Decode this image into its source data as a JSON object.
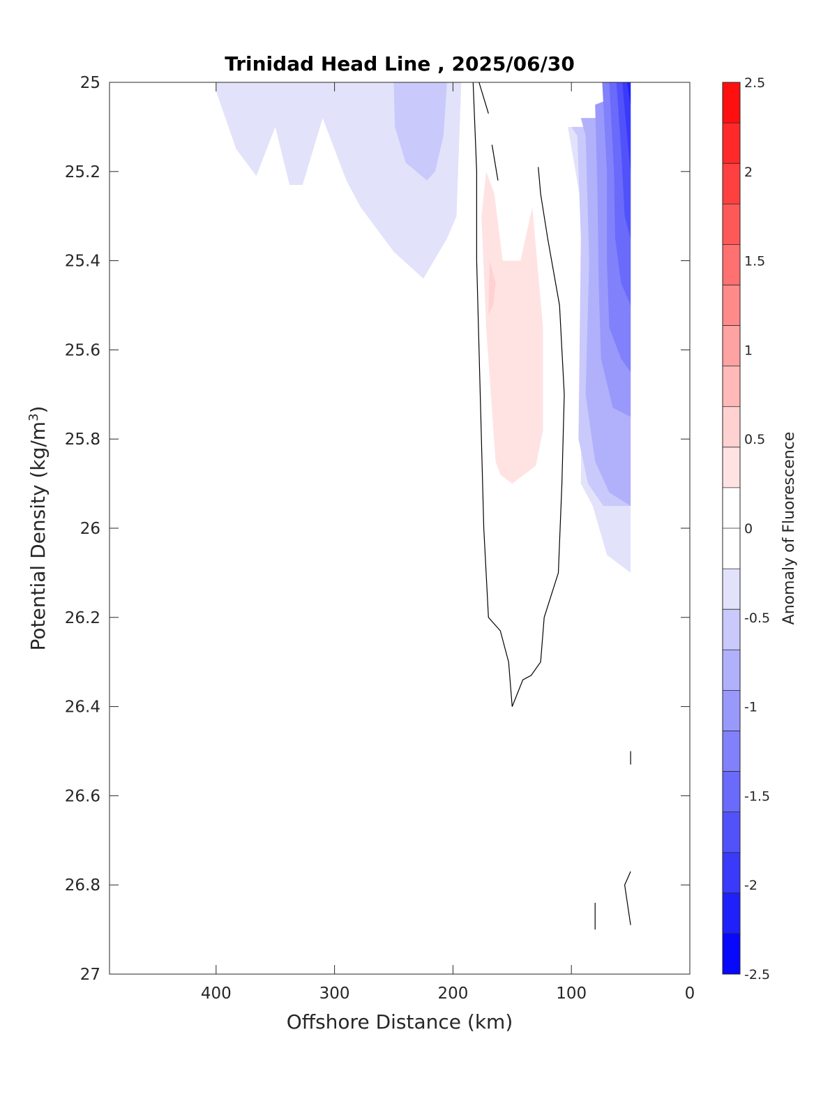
{
  "chart_data": {
    "type": "contourf",
    "title": "Trinidad Head Line , 2025/06/30",
    "xlabel": "Offshore Distance (km)",
    "ylabel_main": "Potential Density (kg/m",
    "ylabel_sup": "3",
    "ylabel_close": ")",
    "xlim": [
      490,
      0
    ],
    "ylim": [
      27,
      25
    ],
    "x_reversed": true,
    "y_reversed": true,
    "x_ticks": [
      400,
      300,
      200,
      100,
      0
    ],
    "x_tick_labels": [
      "400",
      "300",
      "200",
      "100",
      "0"
    ],
    "y_ticks": [
      25,
      25.2,
      25.4,
      25.6,
      25.8,
      26,
      26.2,
      26.4,
      26.6,
      26.8,
      27
    ],
    "y_tick_labels": [
      "25",
      "25.2",
      "25.4",
      "25.6",
      "25.8",
      "26",
      "26.2",
      "26.4",
      "26.6",
      "26.8",
      "27"
    ],
    "grid": false,
    "colorbar": {
      "label": "Anomaly of Fluorescence",
      "limits": [
        -2.5,
        2.5
      ],
      "levels": [
        -2.5,
        -2.25,
        -2,
        -1.75,
        -1.5,
        -1.25,
        -1,
        -0.75,
        -0.5,
        -0.25,
        0.25,
        0.5,
        0.75,
        1,
        1.25,
        1.5,
        1.75,
        2,
        2.25,
        2.5
      ],
      "ticks": [
        2.5,
        2,
        1.5,
        1,
        0.5,
        0,
        -0.5,
        -1,
        -1.5,
        -2,
        -2.5
      ],
      "tick_labels": [
        "2.5",
        "2",
        "1.5",
        "1",
        "0.5",
        "0",
        "-0.5",
        "-1",
        "-1.5",
        "-2",
        "-2.5"
      ],
      "colors_top_to_bottom": [
        "#ff1010",
        "#ff2929",
        "#ff4040",
        "#ff5858",
        "#ff7070",
        "#ff8a8a",
        "#ffa2a2",
        "#ffb9b9",
        "#ffd1d1",
        "#ffe3e3",
        "#ffffff",
        "#ffffff",
        "#e2e2fb",
        "#c9c9fb",
        "#b1b1fb",
        "#9999fb",
        "#8181fb",
        "#6a6afb",
        "#5252fb",
        "#3a3afb",
        "#2020fb",
        "#0808fb"
      ]
    },
    "filled_regions": [
      {
        "level": -0.25,
        "color": "#e2e2fb",
        "points": [
          [
            400,
            25
          ],
          [
            193,
            25
          ],
          [
            197,
            25.3
          ],
          [
            205,
            25.35
          ],
          [
            225,
            25.44
          ],
          [
            250,
            25.38
          ],
          [
            278,
            25.28
          ],
          [
            290,
            25.22
          ],
          [
            310,
            25.08
          ],
          [
            327,
            25.23
          ],
          [
            338,
            25.23
          ],
          [
            350,
            25.1
          ],
          [
            366,
            25.21
          ],
          [
            383,
            25.15
          ],
          [
            400,
            25.02
          ]
        ]
      },
      {
        "level": -0.25,
        "color": "#e2e2fb",
        "points": [
          [
            103,
            25.1
          ],
          [
            90,
            25.3
          ],
          [
            92,
            25.9
          ],
          [
            82,
            25.95
          ],
          [
            70,
            26.06
          ],
          [
            50,
            26.1
          ],
          [
            50,
            25.1
          ]
        ]
      },
      {
        "level": -0.5,
        "color": "#c9c9fb",
        "points": [
          [
            250,
            25
          ],
          [
            205,
            25
          ],
          [
            208,
            25.12
          ],
          [
            215,
            25.2
          ],
          [
            222,
            25.22
          ],
          [
            240,
            25.18
          ],
          [
            249,
            25.1
          ]
        ]
      },
      {
        "level": -0.5,
        "color": "#c9c9fb",
        "points": [
          [
            95,
            25.12
          ],
          [
            92,
            25.35
          ],
          [
            94,
            25.8
          ],
          [
            86,
            25.9
          ],
          [
            73,
            25.95
          ],
          [
            50,
            25.95
          ],
          [
            50,
            25.1
          ],
          [
            100,
            25.1
          ]
        ]
      },
      {
        "level": -0.75,
        "color": "#b1b1fb",
        "points": [
          [
            88,
            25.12
          ],
          [
            85,
            25.4
          ],
          [
            88,
            25.7
          ],
          [
            80,
            25.85
          ],
          [
            68,
            25.92
          ],
          [
            50,
            25.95
          ],
          [
            50,
            25.08
          ],
          [
            92,
            25.08
          ]
        ]
      },
      {
        "level": -1.0,
        "color": "#9999fb",
        "points": [
          [
            80,
            25.05
          ],
          [
            78,
            25.25
          ],
          [
            77,
            25.45
          ],
          [
            75,
            25.62
          ],
          [
            65,
            25.73
          ],
          [
            50,
            25.75
          ],
          [
            50,
            25.02
          ]
        ]
      },
      {
        "level": -1.25,
        "color": "#8181fb",
        "points": [
          [
            74,
            25
          ],
          [
            70,
            25.2
          ],
          [
            70,
            25.4
          ],
          [
            68,
            25.55
          ],
          [
            58,
            25.62
          ],
          [
            50,
            25.65
          ],
          [
            50,
            25
          ]
        ]
      },
      {
        "level": -1.5,
        "color": "#6a6afb",
        "points": [
          [
            68,
            25
          ],
          [
            64,
            25.2
          ],
          [
            63,
            25.35
          ],
          [
            58,
            25.45
          ],
          [
            50,
            25.5
          ],
          [
            50,
            25
          ]
        ]
      },
      {
        "level": -1.75,
        "color": "#5252fb",
        "points": [
          [
            62,
            25
          ],
          [
            58,
            25.15
          ],
          [
            55,
            25.3
          ],
          [
            50,
            25.35
          ],
          [
            50,
            25
          ]
        ]
      },
      {
        "level": -2.0,
        "color": "#3a3afb",
        "points": [
          [
            57,
            25
          ],
          [
            53,
            25.12
          ],
          [
            50,
            25.2
          ],
          [
            50,
            25
          ]
        ]
      },
      {
        "level": -2.25,
        "color": "#2020fb",
        "points": [
          [
            53,
            25
          ],
          [
            50,
            25.05
          ],
          [
            50,
            25
          ]
        ]
      },
      {
        "level": 0.25,
        "color": "#ffe3e3",
        "points": [
          [
            172,
            25.2
          ],
          [
            165,
            25.25
          ],
          [
            158,
            25.4
          ],
          [
            150,
            25.4
          ],
          [
            143,
            25.4
          ],
          [
            133,
            25.28
          ],
          [
            124,
            25.55
          ],
          [
            124,
            25.78
          ],
          [
            130,
            25.86
          ],
          [
            140,
            25.88
          ],
          [
            150,
            25.9
          ],
          [
            160,
            25.88
          ],
          [
            164,
            25.85
          ],
          [
            168,
            25.7
          ],
          [
            172,
            25.55
          ],
          [
            176,
            25.3
          ]
        ]
      },
      {
        "level": 0.5,
        "color": "#ffd1d1",
        "points": [
          [
            169,
            25.4
          ],
          [
            164,
            25.45
          ],
          [
            166,
            25.5
          ],
          [
            170,
            25.52
          ]
        ]
      }
    ],
    "contour_lines": [
      [
        [
          183,
          25
        ],
        [
          180,
          25.2
        ],
        [
          180,
          25.4
        ],
        [
          178,
          25.6
        ],
        [
          176,
          25.8
        ],
        [
          174,
          26
        ],
        [
          170,
          26.2
        ],
        [
          160,
          26.23
        ],
        [
          153,
          26.3
        ],
        [
          150,
          26.4
        ],
        [
          141,
          26.34
        ],
        [
          134,
          26.33
        ],
        [
          126,
          26.3
        ],
        [
          123,
          26.2
        ],
        [
          111,
          26.1
        ],
        [
          108,
          25.9
        ],
        [
          106,
          25.7
        ],
        [
          110,
          25.5
        ],
        [
          120,
          25.35
        ],
        [
          126,
          25.25
        ],
        [
          128,
          25.19
        ]
      ],
      [
        [
          178,
          25
        ],
        [
          170,
          25.07
        ]
      ],
      [
        [
          167,
          25.14
        ],
        [
          162,
          25.22
        ]
      ],
      [
        [
          50,
          26.5
        ],
        [
          50,
          26.53
        ]
      ],
      [
        [
          50,
          26.77
        ],
        [
          55,
          26.8
        ],
        [
          50,
          26.89
        ]
      ],
      [
        [
          80,
          26.84
        ],
        [
          80,
          26.9
        ]
      ]
    ]
  }
}
